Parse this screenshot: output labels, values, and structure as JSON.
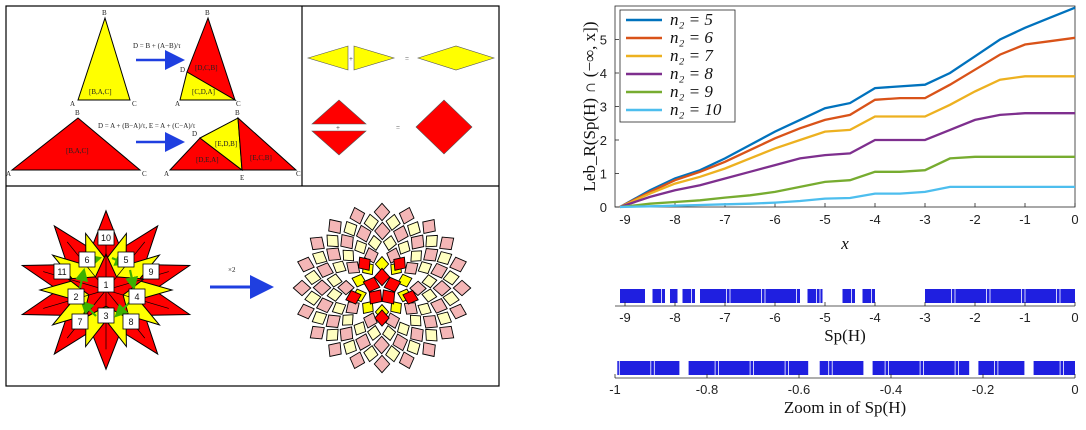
{
  "left_panel": {
    "top_triangle": {
      "vertex_labels": [
        "B",
        "A",
        "C",
        "B",
        "D",
        "A",
        "C"
      ],
      "tile_label": "[B,A,C]",
      "sub_labels": [
        "[D,C,B]",
        "[C,D,A]"
      ],
      "formula": "D = B + (A−B)/τ"
    },
    "bottom_triangle": {
      "vertex_labels": [
        "B",
        "A",
        "C",
        "B",
        "D",
        "A",
        "E",
        "C"
      ],
      "tile_label": "[B,A,C]",
      "sub_labels": [
        "[E,D,B]",
        "[D,E,A]",
        "[E,C,B]"
      ],
      "formula": "D = A + (B−A)/τ, E = A + (C−A)/τ"
    },
    "rhombus_equations": {
      "plus": "+",
      "equals": "="
    },
    "patch_numbers": [
      "10",
      "6",
      "5",
      "11",
      "9",
      "1",
      "2",
      "4",
      "3",
      "7",
      "8"
    ],
    "scale_label": "×2"
  },
  "chart_data": [
    {
      "type": "line",
      "xlabel": "x",
      "ylabel": "Leb_R(Sp(H) ∩ (−∞, x])",
      "xlim": [
        -9.2,
        0
      ],
      "ylim": [
        0,
        6
      ],
      "xticks": [
        "-9",
        "-8",
        "-7",
        "-6",
        "-5",
        "-4",
        "-3",
        "-2",
        "-1",
        "0"
      ],
      "yticks": [
        "0",
        "1",
        "2",
        "3",
        "4",
        "5"
      ],
      "legend_position": "top-left",
      "x": [
        -9.1,
        -8.5,
        -8.0,
        -7.5,
        -7.0,
        -6.5,
        -6.0,
        -5.5,
        -5.0,
        -4.5,
        -4.0,
        -3.5,
        -3.0,
        -2.5,
        -2.0,
        -1.5,
        -1.0,
        -0.5,
        0.0
      ],
      "series": [
        {
          "name": "n₂ = 5",
          "color": "#0072BD",
          "values": [
            0,
            0.5,
            0.85,
            1.1,
            1.45,
            1.85,
            2.25,
            2.6,
            2.95,
            3.1,
            3.55,
            3.6,
            3.65,
            4.0,
            4.5,
            5.0,
            5.35,
            5.65,
            5.95
          ]
        },
        {
          "name": "n₂ = 6",
          "color": "#D95319",
          "values": [
            0,
            0.45,
            0.8,
            1.05,
            1.35,
            1.7,
            2.05,
            2.35,
            2.6,
            2.75,
            3.2,
            3.25,
            3.25,
            3.65,
            4.1,
            4.55,
            4.85,
            4.95,
            5.05
          ]
        },
        {
          "name": "n₂ = 7",
          "color": "#EDB120",
          "values": [
            0,
            0.4,
            0.7,
            0.9,
            1.15,
            1.45,
            1.75,
            2.0,
            2.25,
            2.3,
            2.7,
            2.7,
            2.7,
            3.05,
            3.45,
            3.8,
            3.9,
            3.9,
            3.9
          ]
        },
        {
          "name": "n₂ = 8",
          "color": "#7E2F8E",
          "values": [
            0,
            0.3,
            0.5,
            0.65,
            0.85,
            1.05,
            1.25,
            1.45,
            1.55,
            1.6,
            2.0,
            2.0,
            2.0,
            2.3,
            2.6,
            2.75,
            2.8,
            2.8,
            2.8
          ]
        },
        {
          "name": "n₂ = 9",
          "color": "#77AC30",
          "values": [
            0,
            0.1,
            0.15,
            0.2,
            0.28,
            0.35,
            0.45,
            0.6,
            0.75,
            0.8,
            1.05,
            1.05,
            1.1,
            1.45,
            1.5,
            1.5,
            1.5,
            1.5,
            1.5
          ]
        },
        {
          "name": "n₂ = 10",
          "color": "#4DBEEE",
          "values": [
            0,
            0.02,
            0.04,
            0.06,
            0.08,
            0.1,
            0.13,
            0.18,
            0.25,
            0.27,
            0.4,
            0.4,
            0.45,
            0.6,
            0.6,
            0.6,
            0.6,
            0.6,
            0.6
          ]
        }
      ]
    },
    {
      "type": "spectrum",
      "xlabel": "Sp(H)",
      "xlim": [
        -9.2,
        0
      ],
      "xticks": [
        "-9",
        "-8",
        "-7",
        "-6",
        "-5",
        "-4",
        "-3",
        "-2",
        "-1",
        "0"
      ],
      "bands": [
        [
          -9.1,
          -8.6
        ],
        [
          -8.45,
          -8.2
        ],
        [
          -8.1,
          -7.95
        ],
        [
          -7.85,
          -7.6
        ],
        [
          -7.5,
          -5.5
        ],
        [
          -5.35,
          -5.05
        ],
        [
          -4.65,
          -4.4
        ],
        [
          -4.25,
          -4.0
        ],
        [
          -3.0,
          0.0
        ]
      ]
    },
    {
      "type": "spectrum",
      "xlabel": "Zoom in of Sp(H)",
      "xlim": [
        -1,
        0
      ],
      "xticks": [
        "-1",
        "-0.8",
        "-0.6",
        "-0.4",
        "-0.2",
        "0"
      ],
      "bands": [
        [
          -0.995,
          -0.86
        ],
        [
          -0.84,
          -0.58
        ],
        [
          -0.555,
          -0.46
        ],
        [
          -0.44,
          -0.23
        ],
        [
          -0.21,
          -0.11
        ],
        [
          -0.09,
          0.0
        ]
      ]
    }
  ]
}
